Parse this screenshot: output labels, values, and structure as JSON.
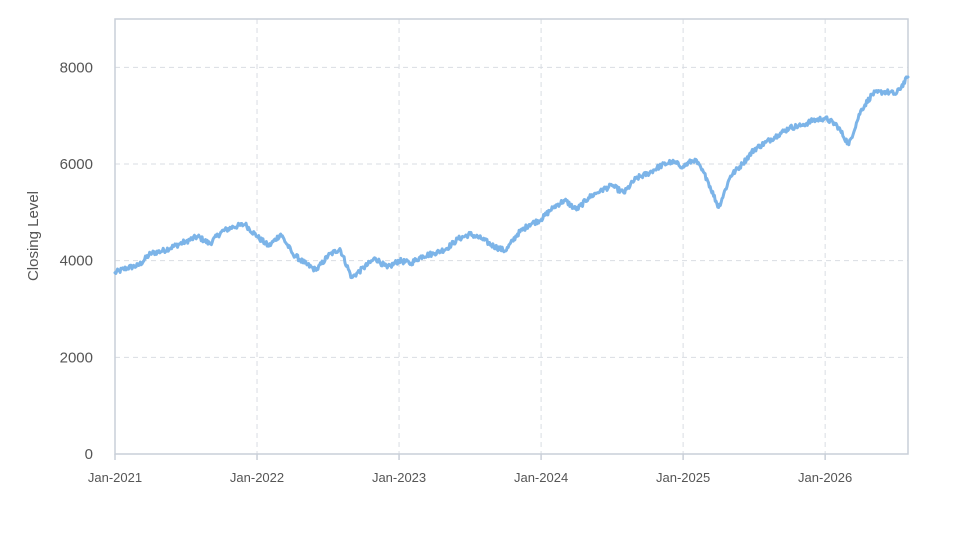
{
  "chart_data": {
    "type": "line",
    "title": "",
    "xlabel": "",
    "ylabel": "Closing Level",
    "xlim": [
      "2021-01",
      "2026-08"
    ],
    "ylim": [
      0,
      9000
    ],
    "y_ticks": [
      "0",
      "2000",
      "4000",
      "6000",
      "8000"
    ],
    "x_ticks": [
      "Jan-2021",
      "Jan-2022",
      "Jan-2023",
      "Jan-2024",
      "Jan-2025",
      "Jan-2026"
    ],
    "grid": true,
    "line_color": "#7cb4e8",
    "series": [
      {
        "values": [
          [
            "2021-01",
            3750
          ],
          [
            "2021-02",
            3850
          ],
          [
            "2021-03",
            3900
          ],
          [
            "2021-04",
            4150
          ],
          [
            "2021-05",
            4200
          ],
          [
            "2021-06",
            4300
          ],
          [
            "2021-07",
            4400
          ],
          [
            "2021-08",
            4500
          ],
          [
            "2021-09",
            4350
          ],
          [
            "2021-10",
            4600
          ],
          [
            "2021-11",
            4700
          ],
          [
            "2021-12",
            4750
          ],
          [
            "2022-01",
            4500
          ],
          [
            "2022-02",
            4300
          ],
          [
            "2022-03",
            4550
          ],
          [
            "2022-04",
            4150
          ],
          [
            "2022-05",
            3950
          ],
          [
            "2022-06",
            3800
          ],
          [
            "2022-07",
            4100
          ],
          [
            "2022-08",
            4250
          ],
          [
            "2022-09",
            3650
          ],
          [
            "2022-10",
            3850
          ],
          [
            "2022-11",
            4050
          ],
          [
            "2022-12",
            3850
          ],
          [
            "2023-01",
            4000
          ],
          [
            "2023-02",
            3950
          ],
          [
            "2023-03",
            4100
          ],
          [
            "2023-04",
            4150
          ],
          [
            "2023-05",
            4250
          ],
          [
            "2023-06",
            4450
          ],
          [
            "2023-07",
            4550
          ],
          [
            "2023-08",
            4450
          ],
          [
            "2023-09",
            4300
          ],
          [
            "2023-10",
            4200
          ],
          [
            "2023-11",
            4550
          ],
          [
            "2023-12",
            4750
          ],
          [
            "2024-01",
            4850
          ],
          [
            "2024-02",
            5100
          ],
          [
            "2024-03",
            5250
          ],
          [
            "2024-04",
            5050
          ],
          [
            "2024-05",
            5300
          ],
          [
            "2024-06",
            5450
          ],
          [
            "2024-07",
            5550
          ],
          [
            "2024-08",
            5400
          ],
          [
            "2024-09",
            5700
          ],
          [
            "2024-10",
            5800
          ],
          [
            "2024-11",
            5950
          ],
          [
            "2024-12",
            6050
          ],
          [
            "2025-01",
            5950
          ],
          [
            "2025-02",
            6100
          ],
          [
            "2025-03",
            5700
          ],
          [
            "2025-04",
            5100
          ],
          [
            "2025-05",
            5750
          ],
          [
            "2025-06",
            6000
          ],
          [
            "2025-07",
            6300
          ],
          [
            "2025-08",
            6450
          ],
          [
            "2025-09",
            6600
          ],
          [
            "2025-10",
            6750
          ],
          [
            "2025-11",
            6800
          ],
          [
            "2025-12",
            6900
          ],
          [
            "2026-01",
            6950
          ],
          [
            "2026-02",
            6800
          ],
          [
            "2026-03",
            6400
          ],
          [
            "2026-04",
            7100
          ],
          [
            "2026-05",
            7450
          ],
          [
            "2026-06",
            7500
          ],
          [
            "2026-07",
            7450
          ],
          [
            "2026-08",
            7800
          ]
        ]
      }
    ]
  }
}
